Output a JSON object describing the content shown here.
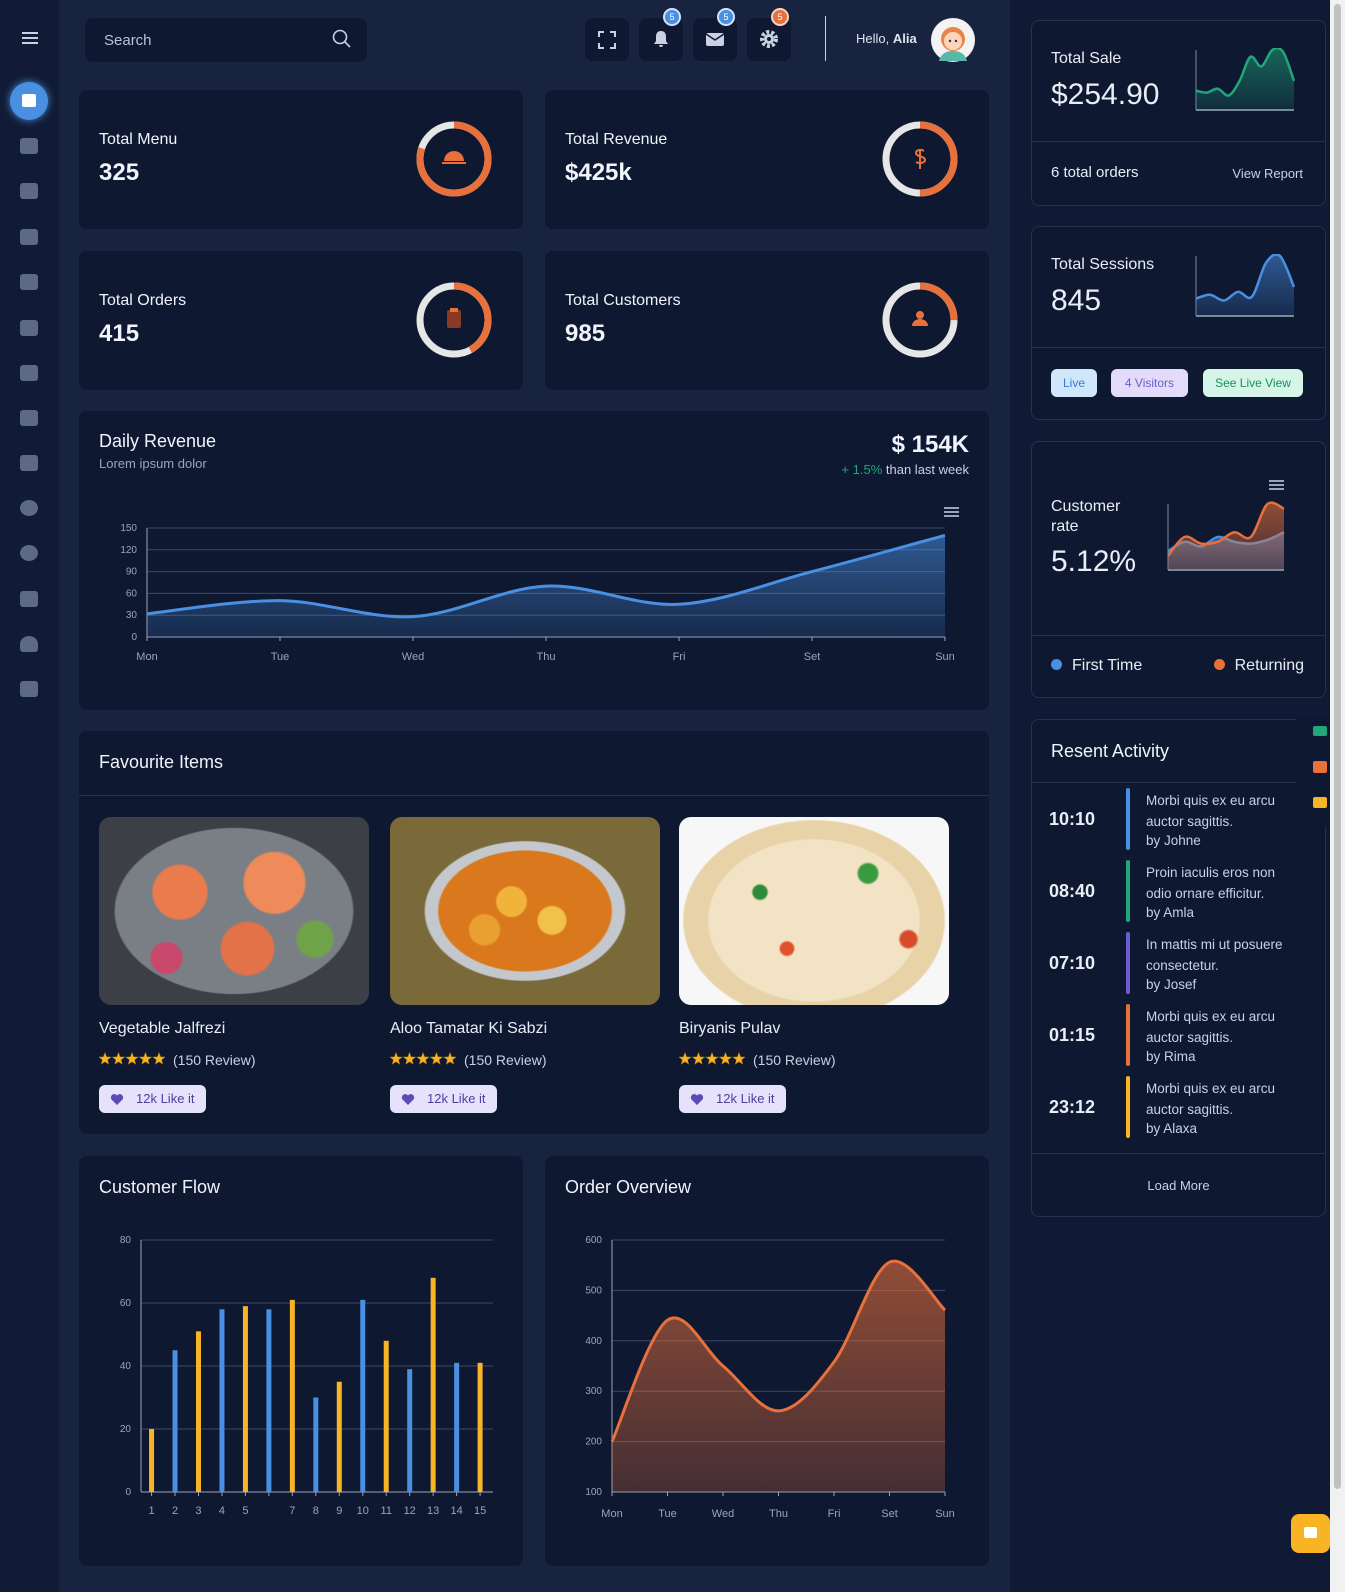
{
  "header": {
    "search_placeholder": "Search",
    "badges": [
      "5",
      "5",
      "5"
    ],
    "greeting": "Hello,",
    "user": "Alia"
  },
  "stats": [
    {
      "title": "Total Menu",
      "value": "325",
      "progress": 80
    },
    {
      "title": "Total Revenue",
      "value": "$425k",
      "progress": 50
    },
    {
      "title": "Total Orders",
      "value": "415",
      "progress": 42
    },
    {
      "title": "Total Customers",
      "value": "985",
      "progress": 25
    }
  ],
  "favourites": {
    "title": "Favourite Items",
    "items": [
      {
        "name": "Vegetable Jalfrezi",
        "review": "(150 Review)",
        "likes": "12k Like it"
      },
      {
        "name": "Aloo Tamatar Ki Sabzi",
        "review": "(150 Review)",
        "likes": "12k Like it"
      },
      {
        "name": "Biryanis Pulav",
        "review": "(150 Review)",
        "likes": "12k Like it"
      }
    ]
  },
  "sale_card": {
    "orders": "6 total orders",
    "link": "View Report"
  },
  "sessions_card": {
    "buttons": [
      "Live",
      "4 Visitors",
      "See Live View"
    ]
  },
  "activity": {
    "title": "Resent Activity",
    "more": "Load More",
    "items": [
      {
        "time": "10:10",
        "text": "Morbi quis ex eu arcu auctor sagittis.",
        "by": "by Johne",
        "color": "#4a90e2"
      },
      {
        "time": "08:40",
        "text": "Proin iaculis eros non odio ornare efficitur.",
        "by": "by Amla",
        "color": "#1fa67a"
      },
      {
        "time": "07:10",
        "text": "In mattis mi ut posuere consectetur.",
        "by": "by Josef",
        "color": "#6c5dd3"
      },
      {
        "time": "01:15",
        "text": "Morbi quis ex eu arcu auctor sagittis.",
        "by": "by Rima",
        "color": "#e8703a"
      },
      {
        "time": "23:12",
        "text": "Morbi quis ex eu arcu auctor sagittis.",
        "by": "by Alaxa",
        "color": "#f8b425"
      }
    ]
  },
  "chart_data": [
    {
      "type": "area",
      "title": "Daily Revenue",
      "subtitle": "Lorem ipsum dolor",
      "total": "$ 154K",
      "change": "+ 1.5%",
      "change_note": "than last week",
      "categories": [
        "Mon",
        "Tue",
        "Wed",
        "Thu",
        "Fri",
        "Set",
        "Sun"
      ],
      "values": [
        32,
        50,
        28,
        70,
        45,
        90,
        140
      ],
      "color": "#4a90e2",
      "ylim": [
        0,
        150
      ],
      "yticks": [
        0,
        30,
        60,
        90,
        120,
        150
      ],
      "grid": true
    },
    {
      "type": "bar",
      "title": "Customer Flow",
      "categories": [
        "1",
        "2",
        "3",
        "4",
        "5",
        null,
        "7",
        "8",
        "9",
        "10",
        "11",
        "12",
        "13",
        "14",
        "15"
      ],
      "values": [
        20,
        45,
        51,
        58,
        59,
        58,
        61,
        30,
        35,
        61,
        48,
        39,
        68,
        41,
        41
      ],
      "colors": [
        "#f8b425",
        "#4a90e2",
        "#f8b425",
        "#4a90e2",
        "#f8b425",
        "#4a90e2",
        "#f8b425",
        "#4a90e2",
        "#f8b425",
        "#4a90e2",
        "#f8b425",
        "#4a90e2",
        "#f8b425",
        "#4a90e2",
        "#f8b425"
      ],
      "ylim": [
        0,
        80
      ],
      "yticks": [
        0,
        20,
        40,
        60,
        80
      ],
      "grid": true
    },
    {
      "type": "area",
      "title": "Order Overview",
      "categories": [
        "Mon",
        "Tue",
        "Wed",
        "Thu",
        "Fri",
        "Set",
        "Sun"
      ],
      "values": [
        200,
        441,
        350,
        261,
        358,
        556,
        461
      ],
      "color": "#e8703a",
      "ylim": [
        100,
        600
      ],
      "yticks": [
        100,
        200,
        300,
        400,
        500,
        600
      ],
      "grid": true
    },
    {
      "type": "area",
      "title": "Total Sale",
      "value": "$254.90",
      "values": [
        20,
        18,
        22,
        15,
        30,
        55,
        45,
        62,
        60,
        30
      ],
      "color": "#1fa67a"
    },
    {
      "type": "area",
      "title": "Total Sessions",
      "value": "845",
      "values": [
        18,
        22,
        16,
        25,
        20,
        55,
        62,
        30
      ],
      "color": "#4a90e2"
    },
    {
      "type": "area",
      "title": "Customer rate",
      "value": "5.12%",
      "legend": "bottom",
      "series": [
        {
          "name": "First Time",
          "color": "#4a90e2",
          "values": [
            20,
            30,
            25,
            35,
            30,
            28,
            32,
            40
          ]
        },
        {
          "name": "Returning",
          "color": "#e8703a",
          "values": [
            15,
            35,
            28,
            30,
            40,
            35,
            70,
            65
          ]
        }
      ]
    }
  ]
}
